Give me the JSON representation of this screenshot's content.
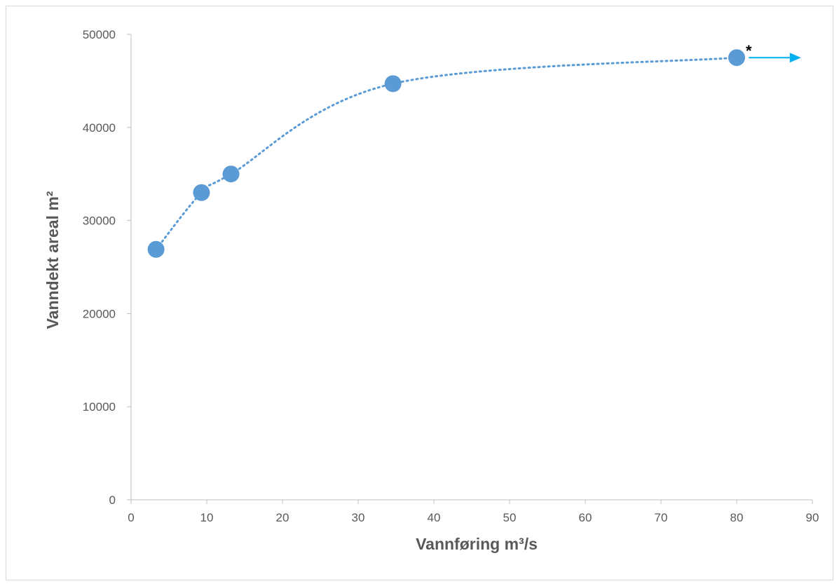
{
  "chart_data": {
    "type": "scatter",
    "title": "",
    "xlabel": "Vannføring m³/s",
    "ylabel": "Vanndekt areal m²",
    "xlim": [
      0,
      90
    ],
    "ylim": [
      0,
      50000
    ],
    "x_ticks": [
      0,
      10,
      20,
      30,
      40,
      50,
      60,
      70,
      80,
      90
    ],
    "y_ticks": [
      0,
      10000,
      20000,
      30000,
      40000,
      50000
    ],
    "grid": false,
    "legend": "none",
    "series": [
      {
        "x": [
          3.3,
          9.3,
          13.2,
          34.6,
          80.0
        ],
        "y": [
          26900,
          33000,
          35000,
          44700,
          47500
        ],
        "marker_color": "#5b9bd5",
        "trendline": "dotted polynomial",
        "trendline_color": "#5b9bd5"
      }
    ],
    "annotations": [
      {
        "text": "*",
        "x": 80.0,
        "y": 47500
      }
    ],
    "arrow": {
      "from_x": 81.6,
      "to_x": 88.5,
      "y": 47500,
      "color": "#00b0f0"
    }
  }
}
